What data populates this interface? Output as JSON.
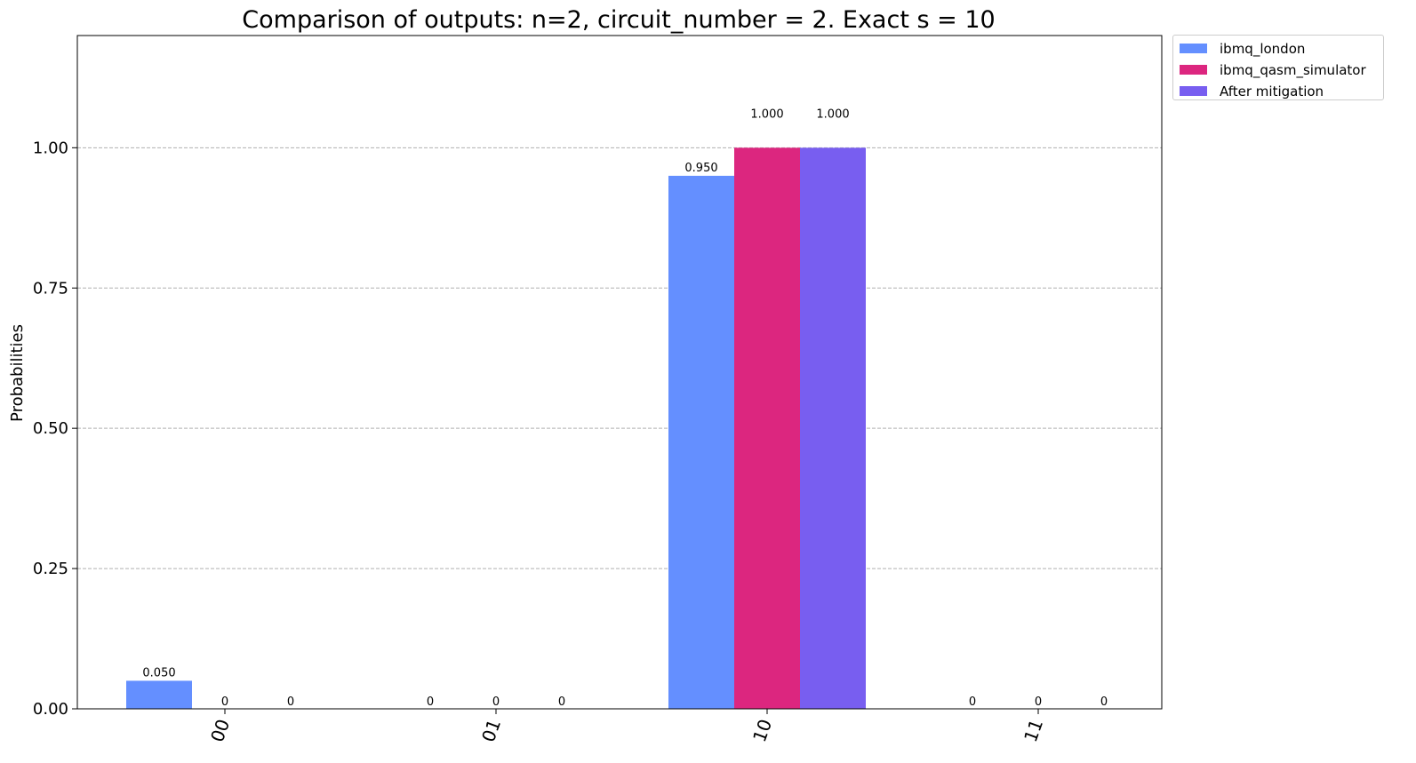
{
  "chart_data": {
    "type": "bar",
    "title": "Comparison of outputs: n=2, circuit_number = 2. Exact s = 10",
    "xlabel": "",
    "ylabel": "Probabilities",
    "categories": [
      "00",
      "01",
      "10",
      "11"
    ],
    "ylim": [
      0,
      1.2
    ],
    "yticks": [
      "0.00",
      "0.25",
      "0.50",
      "0.75",
      "1.00"
    ],
    "grid": "horizontal dashed",
    "legend_placement": "outside top-right",
    "series": [
      {
        "name": "ibmq_london",
        "color": "#648fff",
        "values": [
          0.05,
          0,
          0.95,
          0
        ],
        "labels": [
          "0.050",
          "0",
          "0.950",
          "0"
        ]
      },
      {
        "name": "ibmq_qasm_simulator",
        "color": "#dc267f",
        "values": [
          0,
          0,
          1.0,
          0
        ],
        "labels": [
          "0",
          "0",
          "1.000",
          "0"
        ]
      },
      {
        "name": "After mitigation",
        "color": "#785ef0",
        "values": [
          0,
          0,
          1.0,
          0
        ],
        "labels": [
          "0",
          "0",
          "1.000",
          "0"
        ]
      }
    ]
  }
}
